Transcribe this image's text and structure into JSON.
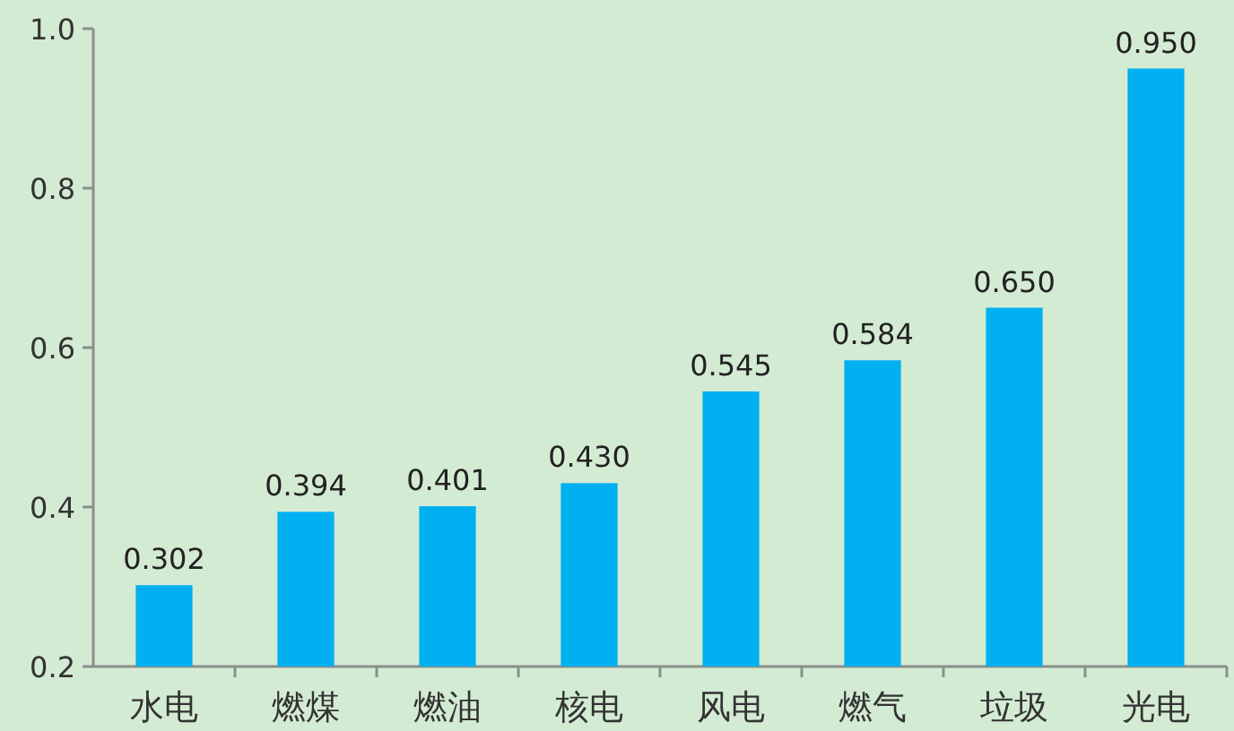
{
  "chart_data": {
    "type": "bar",
    "categories": [
      "水电",
      "燃煤",
      "燃油",
      "核电",
      "风电",
      "燃气",
      "垃圾",
      "光电"
    ],
    "values": [
      0.302,
      0.394,
      0.401,
      0.43,
      0.545,
      0.584,
      0.65,
      0.95
    ],
    "value_labels": [
      "0.302",
      "0.394",
      "0.401",
      "0.430",
      "0.545",
      "0.584",
      "0.650",
      "0.950"
    ],
    "color": "#00b0f0",
    "ylim": [
      0.2,
      1.0
    ],
    "yticks": [
      0.2,
      0.4,
      0.6,
      0.8,
      {
        "value": 1.0,
        "label": "1.0"
      }
    ]
  }
}
